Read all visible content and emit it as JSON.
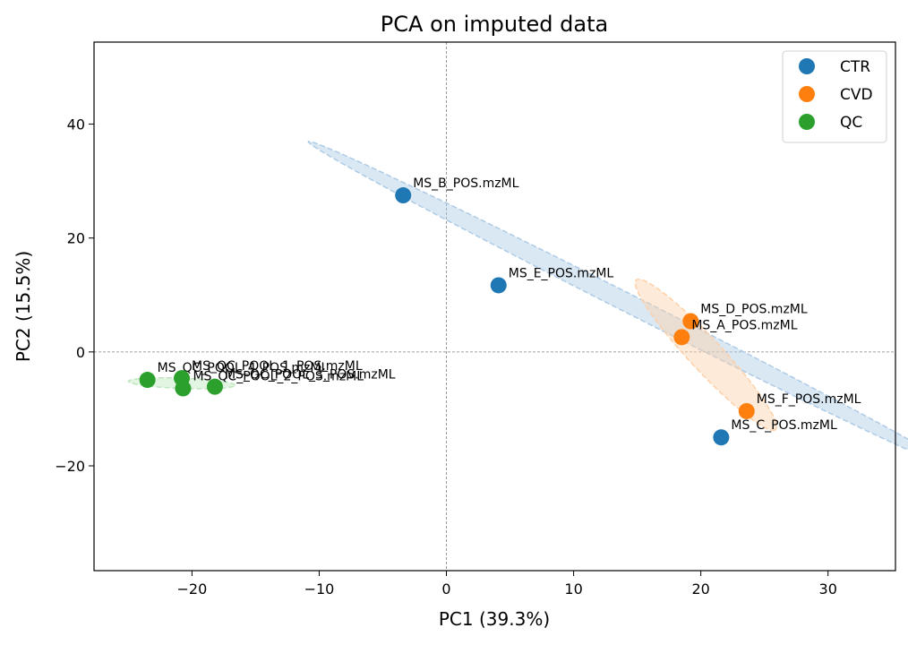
{
  "chart_data": {
    "type": "scatter",
    "title": "PCA on imputed data",
    "xlabel": "PC1 (39.3%)",
    "ylabel": "PC2 (15.5%)",
    "xlim": [
      -27.7,
      35.3
    ],
    "ylim": [
      -38.4,
      54.4
    ],
    "xticks": [
      -20,
      -10,
      0,
      10,
      20,
      30
    ],
    "yticks": [
      -20,
      0,
      20,
      40
    ],
    "xtick_labels": [
      "−20",
      "−10",
      "0",
      "10",
      "20",
      "30"
    ],
    "ytick_labels": [
      "−20",
      "0",
      "20",
      "40"
    ],
    "reference_lines": {
      "x": 0,
      "y": 0,
      "style": "dashed"
    },
    "grid": false,
    "legend_position": "top-right",
    "series": [
      {
        "name": "CTR",
        "color": "#1f77b4",
        "ellipse_color": "#aecbe6",
        "points": [
          {
            "x": -3.4,
            "y": 27.5,
            "label": "MS_B_POS.mzML"
          },
          {
            "x": 4.1,
            "y": 11.7,
            "label": "MS_E_POS.mzML"
          },
          {
            "x": 21.6,
            "y": -15.0,
            "label": "MS_C_POS.mzML"
          }
        ],
        "ellipse": {
          "cx": 14.6,
          "cy": 8.2,
          "a": 38.4,
          "b": 1.2,
          "angle_deg": -48.5
        }
      },
      {
        "name": "CVD",
        "color": "#ff7f0e",
        "ellipse_color": "#fdd0a8",
        "points": [
          {
            "x": 19.2,
            "y": 5.4,
            "label": "MS_D_POS.mzML"
          },
          {
            "x": 18.5,
            "y": 2.6,
            "label": "MS_A_POS.mzML"
          },
          {
            "x": 23.6,
            "y": -10.4,
            "label": "MS_F_POS.mzML"
          }
        ],
        "ellipse": {
          "cx": 20.4,
          "cy": -0.5,
          "a": 14.3,
          "b": 1.6,
          "angle_deg": -68
        }
      },
      {
        "name": "QC",
        "color": "#2ca02c",
        "ellipse_color": "#bfe6bf",
        "points": [
          {
            "x": -23.5,
            "y": -4.9,
            "label": "MS_QC_POOL_4_POS.mzML"
          },
          {
            "x": -20.8,
            "y": -4.6,
            "label": "MS_QC_POOL_1_POS.mzML"
          },
          {
            "x": -20.7,
            "y": -6.4,
            "label": "MS_QC_POOL_2_POS.mzML"
          },
          {
            "x": -18.2,
            "y": -6.1,
            "label": "MS_QC_POOL_3_POS.mzML"
          }
        ],
        "ellipse": {
          "cx": -20.8,
          "cy": -5.5,
          "a": 4.2,
          "b": 0.9,
          "angle_deg": -5
        }
      }
    ]
  },
  "legend": {
    "items": [
      {
        "label": "CTR",
        "color": "#1f77b4"
      },
      {
        "label": "CVD",
        "color": "#ff7f0e"
      },
      {
        "label": "QC",
        "color": "#2ca02c"
      }
    ]
  }
}
